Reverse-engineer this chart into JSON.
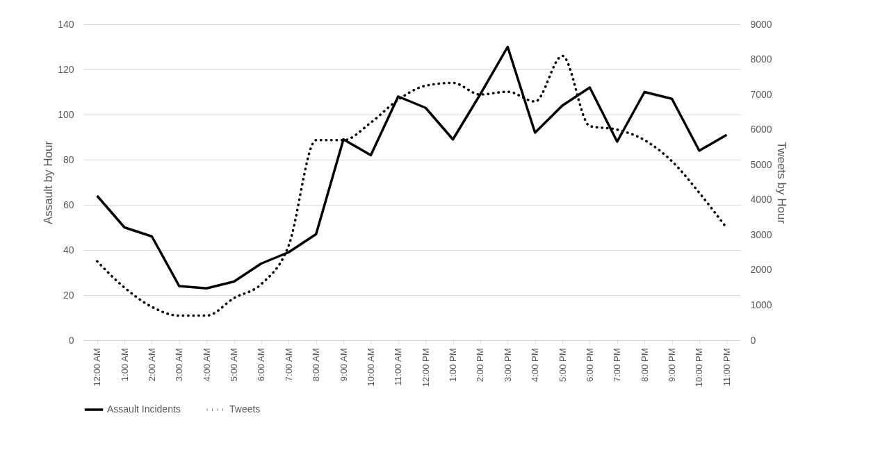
{
  "chart_data": {
    "type": "line",
    "categories": [
      "12:00 AM",
      "1:00 AM",
      "2:00 AM",
      "3:00 AM",
      "4:00 AM",
      "5:00 AM",
      "6:00 AM",
      "7:00 AM",
      "8:00 AM",
      "9:00 AM",
      "10:00 AM",
      "11:00 AM",
      "12:00 PM",
      "1:00 PM",
      "2:00 PM",
      "3:00 PM",
      "4:00 PM",
      "5:00 PM",
      "6:00 PM",
      "7:00 PM",
      "8:00 PM",
      "9:00 PM",
      "10:00 PM",
      "11:00 PM"
    ],
    "series": [
      {
        "name": "Assault Incidents",
        "color": "#000000",
        "line_style": "solid",
        "values": [
          64,
          50,
          46,
          24,
          23,
          26,
          34,
          39,
          47,
          89,
          82,
          108,
          103,
          89,
          109,
          130,
          92,
          104,
          112,
          88,
          110,
          107,
          84,
          91
        ]
      },
      {
        "name": "Tweets",
        "color": "#000000",
        "line_style": "dotted",
        "axis": "y2",
        "values": [
          2250,
          1500,
          950,
          700,
          700,
          1200,
          1600,
          2700,
          5700,
          5700,
          6200,
          6850,
          7250,
          7330,
          7000,
          7080,
          6800,
          8100,
          6100,
          6000,
          5700,
          5100,
          4200,
          3200
        ]
      }
    ],
    "ylabel": "Assault by Hour",
    "y2label": "Tweets by Hour",
    "ylim": [
      0,
      140
    ],
    "yticks": [
      0,
      20,
      40,
      60,
      80,
      100,
      120,
      140
    ],
    "y2lim": [
      0,
      9000
    ],
    "y2ticks": [
      0,
      1000,
      2000,
      3000,
      4000,
      5000,
      6000,
      7000,
      8000,
      9000
    ],
    "grid": "y",
    "legend": "bottom"
  }
}
